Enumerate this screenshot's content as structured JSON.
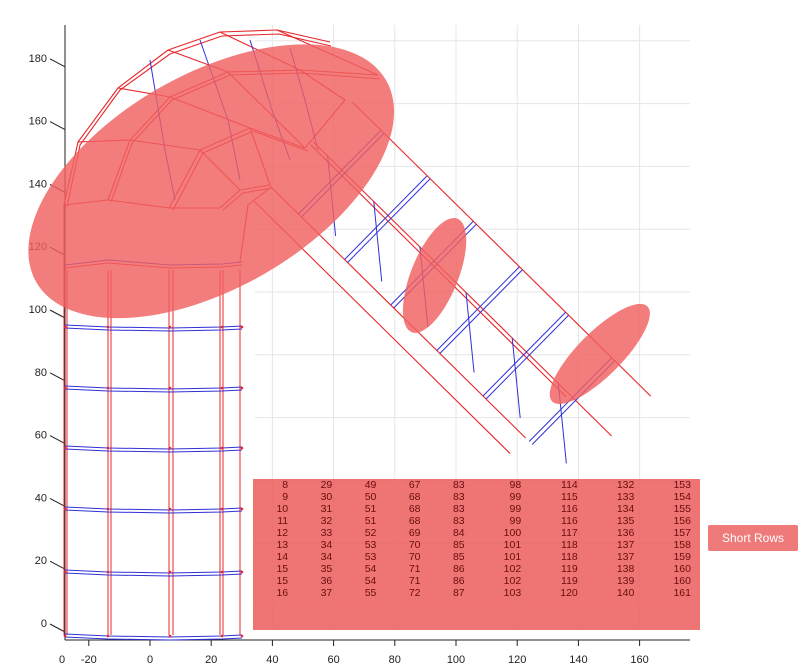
{
  "axes": {
    "x_ticks": [
      -20,
      0,
      20,
      40,
      60,
      80,
      100,
      120,
      140,
      160
    ],
    "x_origin_label": "0",
    "y_ticks": [
      0,
      20,
      40,
      60,
      80,
      100,
      120,
      140,
      160,
      180
    ]
  },
  "colors": {
    "mesh_red": "#e8262b",
    "mesh_blue": "#3030d8",
    "highlight": "#f06060",
    "grid": "#e6e6e6"
  },
  "highlights": [
    {
      "name": "large-ellipse-highlight",
      "cx": 20,
      "cy": 141,
      "rx": 66,
      "ry": 34,
      "angle": -30
    },
    {
      "name": "middle-ellipse-highlight",
      "cx": 93,
      "cy": 111,
      "rx": 20,
      "ry": 7.5,
      "angle": -68
    },
    {
      "name": "right-ellipse-highlight",
      "cx": 147,
      "cy": 86,
      "rx": 22,
      "ry": 7,
      "angle": -45
    }
  ],
  "table": {
    "rows": [
      [
        8,
        29,
        49,
        67,
        83,
        98,
        114,
        132,
        153
      ],
      [
        9,
        30,
        50,
        68,
        83,
        99,
        115,
        133,
        154
      ],
      [
        10,
        31,
        51,
        68,
        83,
        99,
        116,
        134,
        155
      ],
      [
        11,
        32,
        51,
        68,
        83,
        99,
        116,
        135,
        156
      ],
      [
        12,
        33,
        52,
        69,
        84,
        100,
        117,
        136,
        157
      ],
      [
        13,
        34,
        53,
        70,
        85,
        101,
        118,
        137,
        158
      ],
      [
        14,
        34,
        53,
        70,
        85,
        101,
        118,
        137,
        159
      ],
      [
        15,
        35,
        54,
        71,
        86,
        102,
        119,
        138,
        160
      ],
      [
        15,
        36,
        54,
        71,
        86,
        102,
        119,
        139,
        160
      ],
      [
        16,
        37,
        55,
        72,
        87,
        103,
        120,
        140,
        161
      ]
    ]
  },
  "button": {
    "label": "Short Rows"
  }
}
